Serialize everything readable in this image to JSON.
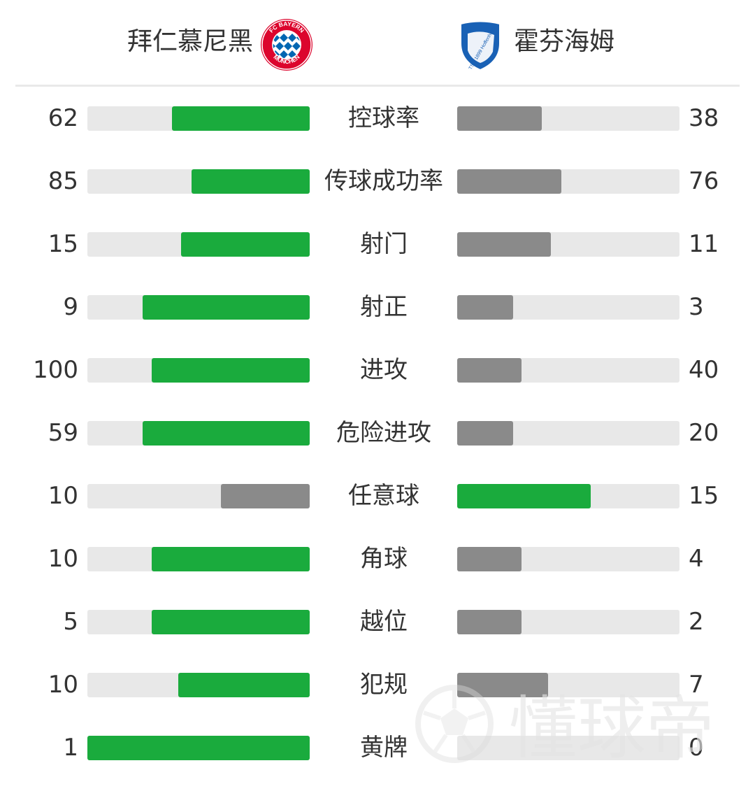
{
  "header": {
    "home_team": "拜仁慕尼黑",
    "away_team": "霍芬海姆",
    "home_logo_text_top": "FC BAYERN",
    "home_logo_text_bottom": "MÜNCHEN",
    "away_logo_text": "TSG 1899 Hoffenheim"
  },
  "colors": {
    "leader": "#1aab3d",
    "trailer": "#8a8a8a",
    "track": "#e8e8e8",
    "bayern_red": "#dc052d",
    "bayern_blue": "#0066b2",
    "hoffenheim_blue": "#1961b5"
  },
  "stats": [
    {
      "label": "控球率",
      "home": "62",
      "away": "38",
      "home_fill": 0.62,
      "away_fill": 0.38
    },
    {
      "label": "传球成功率",
      "home": "85",
      "away": "76",
      "home_fill": 0.53,
      "away_fill": 0.47
    },
    {
      "label": "射门",
      "home": "15",
      "away": "11",
      "home_fill": 0.58,
      "away_fill": 0.42
    },
    {
      "label": "射正",
      "home": "9",
      "away": "3",
      "home_fill": 0.75,
      "away_fill": 0.25
    },
    {
      "label": "进攻",
      "home": "100",
      "away": "40",
      "home_fill": 0.71,
      "away_fill": 0.29
    },
    {
      "label": "危险进攻",
      "home": "59",
      "away": "20",
      "home_fill": 0.75,
      "away_fill": 0.25
    },
    {
      "label": "任意球",
      "home": "10",
      "away": "15",
      "home_fill": 0.4,
      "away_fill": 0.6
    },
    {
      "label": "角球",
      "home": "10",
      "away": "4",
      "home_fill": 0.71,
      "away_fill": 0.29
    },
    {
      "label": "越位",
      "home": "5",
      "away": "2",
      "home_fill": 0.71,
      "away_fill": 0.29
    },
    {
      "label": "犯规",
      "home": "10",
      "away": "7",
      "home_fill": 0.59,
      "away_fill": 0.41
    },
    {
      "label": "黄牌",
      "home": "1",
      "away": "0",
      "home_fill": 1.0,
      "away_fill": 0.0
    }
  ],
  "watermark": {
    "text": "懂球帝"
  }
}
